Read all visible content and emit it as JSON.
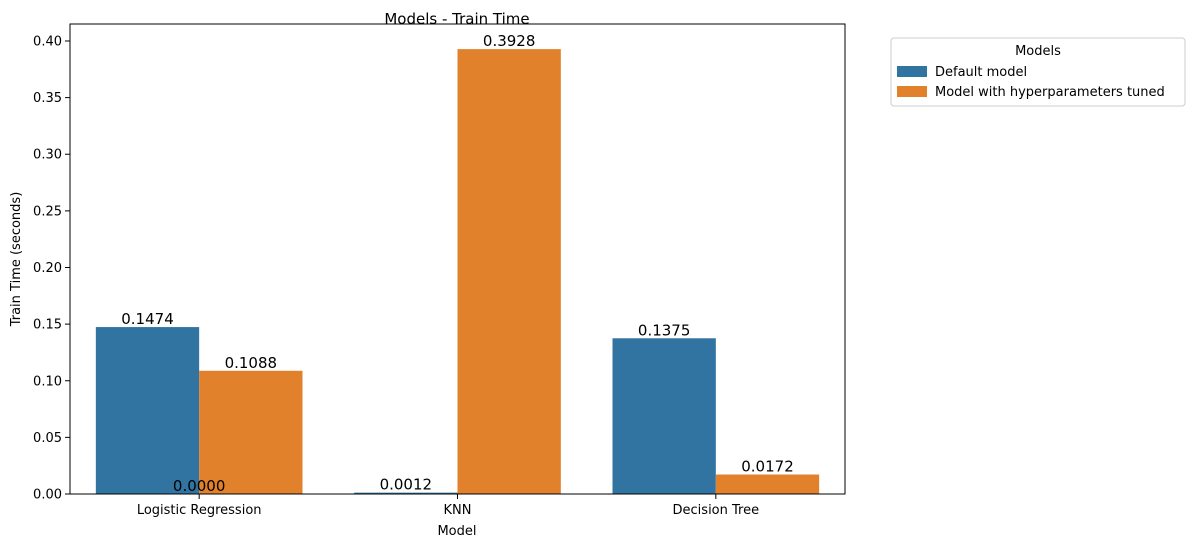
{
  "chart_data": {
    "type": "bar",
    "title": "Models - Train Time",
    "xlabel": "Model",
    "ylabel": "Train Time (seconds)",
    "categories": [
      "Logistic Regression",
      "KNN",
      "Decision Tree"
    ],
    "series": [
      {
        "name": "Default model",
        "color": "#3274a1",
        "values": [
          0.1474,
          0.0012,
          0.1375
        ],
        "labels": [
          "0.1474",
          "0.0012",
          "0.1375"
        ]
      },
      {
        "name": "Model with hyperparameters tuned",
        "color": "#e1812c",
        "values": [
          0.1088,
          0.3928,
          0.0172
        ],
        "labels": [
          "0.1088",
          "0.3928",
          "0.0172"
        ]
      }
    ],
    "extra_labels": [
      "0.0000"
    ],
    "ylim": [
      0,
      0.415
    ],
    "yticks": [
      0.0,
      0.05,
      0.1,
      0.15,
      0.2,
      0.25,
      0.3,
      0.35,
      0.4
    ],
    "ytick_labels": [
      "0.00",
      "0.05",
      "0.10",
      "0.15",
      "0.20",
      "0.25",
      "0.30",
      "0.35",
      "0.40"
    ],
    "grid": false,
    "legend": {
      "title": "Models",
      "placement": "outside-top-right"
    }
  }
}
